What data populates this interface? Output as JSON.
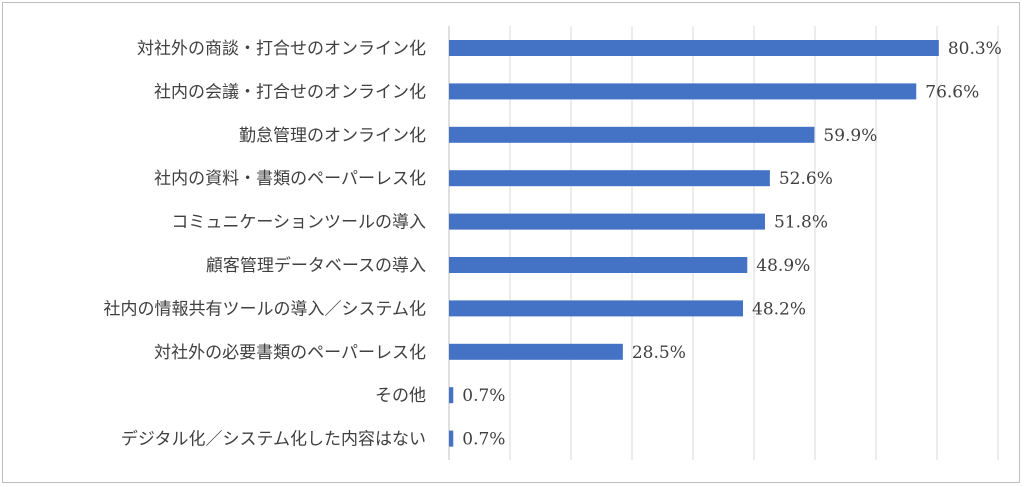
{
  "chart_data": {
    "type": "bar",
    "orientation": "horizontal",
    "categories": [
      "対社外の商談・打合せのオンライン化",
      "社内の会議・打合せのオンライン化",
      "勤怠管理のオンライン化",
      "社内の資料・書類のペーパーレス化",
      "コミュニケーションツールの導入",
      "顧客管理データベースの導入",
      "社内の情報共有ツールの導入／システム化",
      "対社外の必要書類のペーパーレス化",
      "その他",
      "デジタル化／システム化した内容はない"
    ],
    "values": [
      80.3,
      76.6,
      59.9,
      52.6,
      51.8,
      48.9,
      48.2,
      28.5,
      0.7,
      0.7
    ],
    "value_labels": [
      "80.3%",
      "76.6%",
      "59.9%",
      "52.6%",
      "51.8%",
      "48.9%",
      "48.2%",
      "28.5%",
      "0.7%",
      "0.7%"
    ],
    "xlim": [
      0,
      90
    ],
    "grid": true,
    "bar_color": "#4472c4",
    "grid_color": "#d9d9d9",
    "title": "",
    "xlabel": "",
    "ylabel": ""
  }
}
